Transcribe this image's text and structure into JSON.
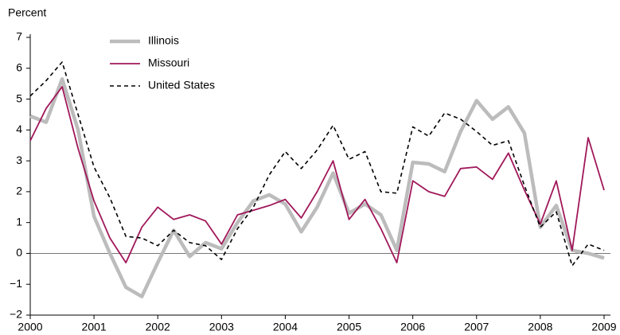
{
  "chart_data": {
    "type": "line",
    "y_label": "Percent",
    "x": [
      2000,
      2000.25,
      2000.5,
      2000.75,
      2001,
      2001.25,
      2001.5,
      2001.75,
      2002,
      2002.25,
      2002.5,
      2002.75,
      2003,
      2003.25,
      2003.5,
      2003.75,
      2004,
      2004.25,
      2004.5,
      2004.75,
      2005,
      2005.25,
      2005.5,
      2005.75,
      2006,
      2006.25,
      2006.5,
      2006.75,
      2007,
      2007.25,
      2007.5,
      2007.75,
      2008,
      2008.25,
      2008.5,
      2008.75,
      2009
    ],
    "series": [
      {
        "name": "Illinois",
        "color": "#bcbcbc",
        "style": "thick",
        "values": [
          4.45,
          4.25,
          5.65,
          4.0,
          1.2,
          0.0,
          -1.1,
          -1.4,
          -0.3,
          0.75,
          -0.1,
          0.35,
          0.15,
          1.0,
          1.7,
          1.9,
          1.6,
          0.7,
          1.5,
          2.6,
          1.3,
          1.6,
          1.25,
          0.1,
          2.95,
          2.9,
          2.65,
          3.95,
          4.95,
          4.35,
          4.75,
          3.9,
          0.85,
          1.55,
          0.1,
          0.0,
          -0.15
        ]
      },
      {
        "name": "Missouri",
        "color": "#a0185a",
        "style": "solid",
        "values": [
          3.65,
          4.7,
          5.4,
          3.4,
          1.7,
          0.5,
          -0.3,
          0.85,
          1.5,
          1.1,
          1.25,
          1.05,
          0.3,
          1.25,
          1.4,
          1.55,
          1.75,
          1.15,
          2.0,
          3.0,
          1.1,
          1.75,
          0.8,
          -0.3,
          2.35,
          2.0,
          1.85,
          2.75,
          2.8,
          2.4,
          3.25,
          2.05,
          0.95,
          2.35,
          0.1,
          3.75,
          2.05
        ]
      },
      {
        "name": "United States",
        "color": "#000000",
        "style": "dashed",
        "values": [
          5.1,
          5.6,
          6.2,
          4.5,
          2.8,
          1.8,
          0.55,
          0.5,
          0.25,
          0.75,
          0.35,
          0.25,
          -0.2,
          0.8,
          1.5,
          2.55,
          3.3,
          2.75,
          3.35,
          4.15,
          3.05,
          3.3,
          2.0,
          1.95,
          4.1,
          3.8,
          4.55,
          4.35,
          3.95,
          3.5,
          3.65,
          2.2,
          0.85,
          1.35,
          -0.4,
          0.3,
          0.1
        ]
      }
    ],
    "xlim": [
      2000,
      2009.1
    ],
    "xticks": [
      2000,
      2001,
      2002,
      2003,
      2004,
      2005,
      2006,
      2007,
      2008,
      2009
    ],
    "ylim": [
      -2,
      7
    ],
    "yticks": [
      {
        "value": -2,
        "label": "−2"
      },
      {
        "value": -1,
        "label": "−1"
      },
      0,
      1,
      2,
      3,
      4,
      5,
      6,
      7
    ],
    "zero_line": true,
    "legend": "upper left"
  }
}
